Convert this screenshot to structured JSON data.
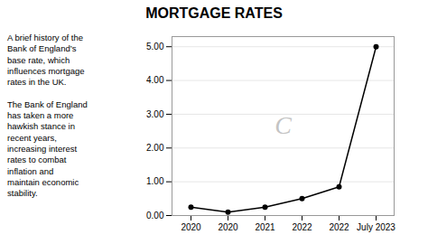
{
  "chart_data": {
    "type": "line",
    "title": "MORTGAGE RATES",
    "categories": [
      "2020",
      "2020",
      "2021",
      "2022",
      "2022",
      "July 2023"
    ],
    "values": [
      0.25,
      0.1,
      0.25,
      0.5,
      0.85,
      5.0
    ],
    "ylim": [
      0,
      5.3
    ],
    "yticks": [
      {
        "value": 0,
        "label": "0.00"
      },
      {
        "value": 1,
        "label": "1.00"
      },
      {
        "value": 2,
        "label": "2.00"
      },
      {
        "value": 3,
        "label": "3.00"
      },
      {
        "value": 4,
        "label": "4.00"
      },
      {
        "value": 5,
        "label": "5.00"
      }
    ],
    "grid": true,
    "marker": "circle",
    "annotations": [
      "C",
      "A brief history of the\nBank of England’s\nbase rate, which\ninfluences mortgage\nrates in the UK.",
      "The Bank of England\nhas taken a more\nhawkish stance in\nrecent years,\nincreasing interest\nrates to combat\ninflation and\nmaintain economic\nstability."
    ]
  }
}
